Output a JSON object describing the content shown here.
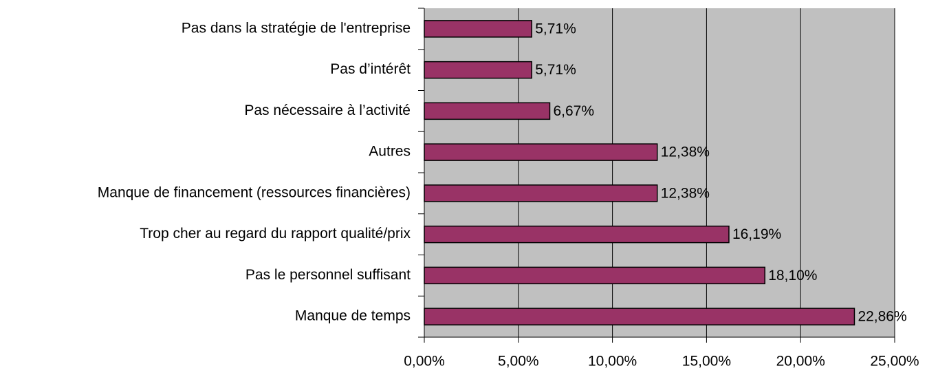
{
  "chart_data": {
    "type": "bar",
    "orientation": "horizontal",
    "categories": [
      "Pas dans la stratégie de l'entreprise",
      "Pas d’intérêt",
      "Pas nécessaire à l’activité",
      "Autres",
      "Manque de financement (ressources financières)",
      "Trop cher au regard du rapport qualité/prix",
      "Pas le personnel suffisant",
      "Manque de temps"
    ],
    "values": [
      5.71,
      5.71,
      6.67,
      12.38,
      12.38,
      16.19,
      18.1,
      22.86
    ],
    "value_labels": [
      "5,71%",
      "5,71%",
      "6,67%",
      "12,38%",
      "12,38%",
      "16,19%",
      "18,10%",
      "22,86%"
    ],
    "color": "#993366",
    "xlim": [
      0,
      25
    ],
    "xticks": [
      {
        "value": 0,
        "label": "0,00%"
      },
      {
        "value": 5,
        "label": "5,00%"
      },
      {
        "value": 10,
        "label": "10,00%"
      },
      {
        "value": 15,
        "label": "15,00%"
      },
      {
        "value": 20,
        "label": "20,00%"
      },
      {
        "value": 25,
        "label": "25,00%"
      }
    ],
    "grid": true
  }
}
